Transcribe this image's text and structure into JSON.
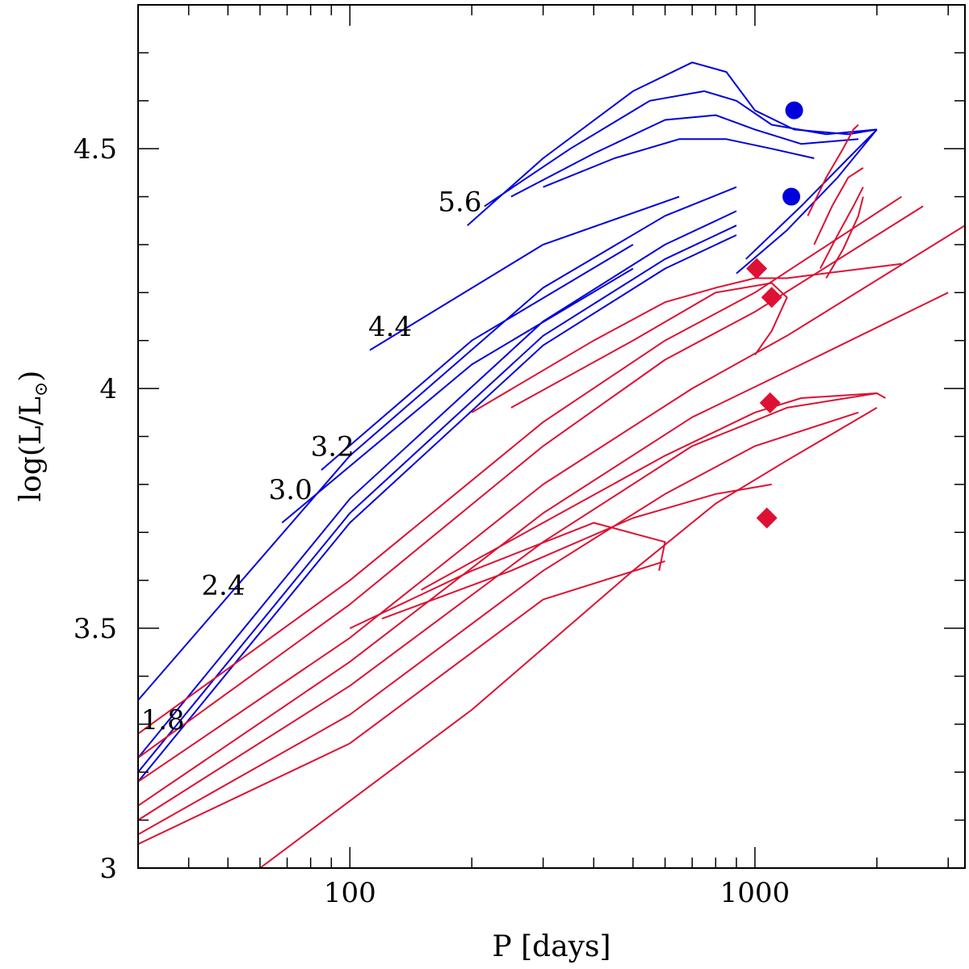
{
  "chart_data": {
    "type": "line",
    "title": "",
    "xlabel": "P [days]",
    "ylabel_main": "log(L/L",
    "ylabel_sub": "⊙",
    "ylabel_close": ")",
    "x_scale": "log",
    "xlim": [
      30,
      3300
    ],
    "ylim": [
      3.0,
      4.8
    ],
    "x_ticks": [
      {
        "value": 100,
        "label": "100"
      },
      {
        "value": 1000,
        "label": "1000"
      }
    ],
    "y_ticks": [
      {
        "value": 3.0,
        "label": "3"
      },
      {
        "value": 3.5,
        "label": "3.5"
      },
      {
        "value": 4.0,
        "label": "4"
      },
      {
        "value": 4.5,
        "label": "4.5"
      }
    ],
    "grid": false,
    "colors": {
      "blue": "#0000dd",
      "red": "#dd1133"
    },
    "track_labels": [
      {
        "text": "5.6",
        "x": 165,
        "y": 4.39
      },
      {
        "text": "4.4",
        "x": 111,
        "y": 4.13
      },
      {
        "text": "3.2",
        "x": 80,
        "y": 3.88
      },
      {
        "text": "3.0",
        "x": 63,
        "y": 3.79
      },
      {
        "text": "2.4",
        "x": 43,
        "y": 3.59
      },
      {
        "text": "1.8",
        "x": 30.5,
        "y": 3.31
      }
    ],
    "series": [
      {
        "color": "blue",
        "x": [
          30,
          100,
          300,
          600,
          900
        ],
        "y": [
          3.35,
          3.86,
          4.21,
          4.36,
          4.42
        ]
      },
      {
        "color": "blue",
        "x": [
          30,
          100,
          300,
          600,
          900
        ],
        "y": [
          3.23,
          3.77,
          4.14,
          4.3,
          4.37
        ]
      },
      {
        "color": "blue",
        "x": [
          30,
          100,
          300,
          600,
          900
        ],
        "y": [
          3.2,
          3.74,
          4.11,
          4.27,
          4.34
        ]
      },
      {
        "color": "blue",
        "x": [
          30,
          100,
          300,
          600,
          900
        ],
        "y": [
          3.18,
          3.72,
          4.09,
          4.25,
          4.32
        ]
      },
      {
        "color": "blue",
        "x": [
          68,
          200,
          500
        ],
        "y": [
          3.72,
          4.05,
          4.25
        ]
      },
      {
        "color": "blue",
        "x": [
          85,
          200,
          500
        ],
        "y": [
          3.83,
          4.1,
          4.3
        ]
      },
      {
        "color": "blue",
        "x": [
          112,
          300,
          650
        ],
        "y": [
          4.08,
          4.3,
          4.4
        ]
      },
      {
        "color": "blue",
        "x": [
          195,
          300,
          500,
          700,
          850,
          1000,
          1250,
          1700,
          2000
        ],
        "y": [
          4.34,
          4.48,
          4.62,
          4.68,
          4.66,
          4.58,
          4.54,
          4.53,
          4.54
        ]
      },
      {
        "color": "blue",
        "x": [
          215,
          350,
          550,
          750,
          900,
          1100,
          1500,
          2000
        ],
        "y": [
          4.38,
          4.5,
          4.6,
          4.62,
          4.6,
          4.55,
          4.53,
          4.54
        ]
      },
      {
        "color": "blue",
        "x": [
          250,
          400,
          600,
          800,
          1000,
          1300,
          1800
        ],
        "y": [
          4.4,
          4.49,
          4.56,
          4.57,
          4.54,
          4.51,
          4.52
        ]
      },
      {
        "color": "blue",
        "x": [
          300,
          450,
          650,
          850,
          1100,
          1400
        ],
        "y": [
          4.42,
          4.48,
          4.52,
          4.52,
          4.5,
          4.48
        ]
      },
      {
        "color": "blue",
        "x": [
          900,
          1200,
          1600,
          2000
        ],
        "y": [
          4.24,
          4.33,
          4.44,
          4.54
        ]
      },
      {
        "color": "blue",
        "x": [
          950,
          1300,
          1700,
          2000
        ],
        "y": [
          4.27,
          4.38,
          4.48,
          4.54
        ]
      },
      {
        "color": "red",
        "x": [
          30,
          100,
          300,
          600,
          1000,
          2300
        ],
        "y": [
          3.28,
          3.6,
          3.93,
          4.1,
          4.2,
          4.4
        ]
      },
      {
        "color": "red",
        "x": [
          30,
          100,
          300,
          600,
          1000,
          2600
        ],
        "y": [
          3.23,
          3.55,
          3.88,
          4.06,
          4.16,
          4.38
        ]
      },
      {
        "color": "red",
        "x": [
          30,
          100,
          300,
          700,
          1200,
          3300
        ],
        "y": [
          3.18,
          3.48,
          3.8,
          4.0,
          4.11,
          4.34
        ]
      },
      {
        "color": "red",
        "x": [
          30,
          100,
          300,
          700,
          1300,
          3000
        ],
        "y": [
          3.13,
          3.43,
          3.74,
          3.94,
          4.05,
          4.2
        ]
      },
      {
        "color": "red",
        "x": [
          30,
          100,
          300,
          700,
          1200,
          2000
        ],
        "y": [
          3.1,
          3.38,
          3.68,
          3.88,
          3.96,
          3.99
        ]
      },
      {
        "color": "red",
        "x": [
          30,
          100,
          300,
          600,
          1000,
          1800
        ],
        "y": [
          3.07,
          3.32,
          3.62,
          3.78,
          3.88,
          3.95
        ]
      },
      {
        "color": "red",
        "x": [
          30,
          100,
          300,
          600
        ],
        "y": [
          3.05,
          3.26,
          3.56,
          3.64
        ]
      },
      {
        "color": "red",
        "x": [
          60,
          200,
          500,
          800,
          1200,
          2000
        ],
        "y": [
          3.0,
          3.33,
          3.62,
          3.76,
          3.85,
          3.96
        ]
      },
      {
        "color": "red",
        "x": [
          200,
          400,
          600,
          800,
          1000,
          1200,
          2300
        ],
        "y": [
          3.95,
          4.1,
          4.18,
          4.21,
          4.23,
          4.23,
          4.26
        ]
      },
      {
        "color": "red",
        "x": [
          250,
          500,
          800,
          1100,
          1200,
          1100,
          1000
        ],
        "y": [
          3.96,
          4.1,
          4.2,
          4.22,
          4.19,
          4.12,
          4.07
        ]
      },
      {
        "color": "red",
        "x": [
          150,
          300,
          600,
          1000,
          1300,
          2000,
          2100
        ],
        "y": [
          3.58,
          3.72,
          3.86,
          3.95,
          3.98,
          3.99,
          3.98
        ]
      },
      {
        "color": "red",
        "x": [
          120,
          250,
          500,
          800,
          1100
        ],
        "y": [
          3.52,
          3.62,
          3.73,
          3.78,
          3.8
        ]
      },
      {
        "color": "red",
        "x": [
          100,
          200,
          400,
          600,
          580
        ],
        "y": [
          3.5,
          3.62,
          3.72,
          3.68,
          3.62
        ]
      },
      {
        "color": "red",
        "x": [
          1350,
          1500,
          1650,
          1750,
          1800
        ],
        "y": [
          4.36,
          4.44,
          4.5,
          4.54,
          4.55
        ]
      },
      {
        "color": "red",
        "x": [
          1400,
          1550,
          1700,
          1850
        ],
        "y": [
          4.3,
          4.38,
          4.44,
          4.46
        ]
      },
      {
        "color": "red",
        "x": [
          1450,
          1600,
          1750,
          1850
        ],
        "y": [
          4.25,
          4.32,
          4.38,
          4.42
        ]
      },
      {
        "color": "red",
        "x": [
          1500,
          1650,
          1800,
          1850
        ],
        "y": [
          4.23,
          4.29,
          4.36,
          4.4
        ]
      }
    ],
    "markers": [
      {
        "shape": "circle",
        "color": "blue",
        "x": [
          1250,
          1230
        ],
        "y": [
          4.58,
          4.4
        ]
      },
      {
        "shape": "diamond",
        "color": "red",
        "x": [
          1010,
          1100,
          1090,
          1070
        ],
        "y": [
          4.25,
          4.19,
          3.97,
          3.73
        ]
      }
    ]
  }
}
